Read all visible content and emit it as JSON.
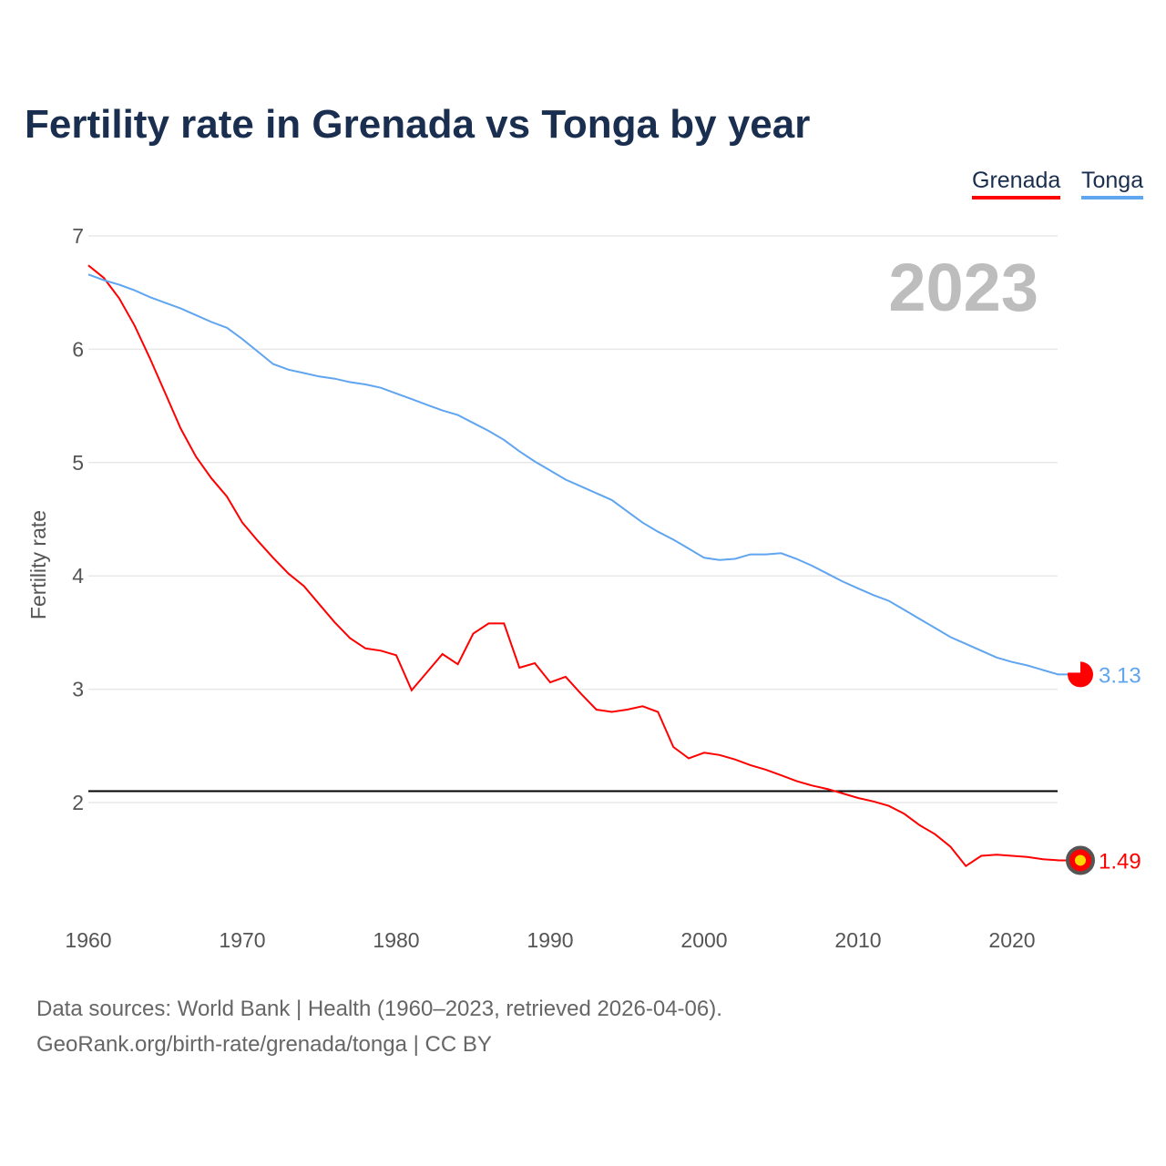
{
  "title": "Fertility rate in Grenada vs Tonga by year",
  "legend": [
    {
      "name": "Grenada",
      "color": "#ff0000"
    },
    {
      "name": "Tonga",
      "color": "#60a5ef"
    }
  ],
  "year_label": "2023",
  "source_line1": "Data sources: World Bank | Health (1960–2023, retrieved 2026-04-06).",
  "source_line2": "GeoRank.org/birth-rate/grenada/tonga | CC BY",
  "chart_data": {
    "type": "line",
    "title": "Fertility rate in Grenada vs Tonga by year",
    "xlabel": "",
    "ylabel": "Fertility rate",
    "xlim": [
      1960,
      2023
    ],
    "ylim": [
      1,
      7
    ],
    "xticks": [
      1960,
      1970,
      1980,
      1990,
      2000,
      2010,
      2020
    ],
    "yticks": [
      2,
      3,
      4,
      5,
      6,
      7
    ],
    "reference_line": 2.1,
    "x": [
      1960,
      1961,
      1962,
      1963,
      1964,
      1965,
      1966,
      1967,
      1968,
      1969,
      1970,
      1971,
      1972,
      1973,
      1974,
      1975,
      1976,
      1977,
      1978,
      1979,
      1980,
      1981,
      1982,
      1983,
      1984,
      1985,
      1986,
      1987,
      1988,
      1989,
      1990,
      1991,
      1992,
      1993,
      1994,
      1995,
      1996,
      1997,
      1998,
      1999,
      2000,
      2001,
      2002,
      2003,
      2004,
      2005,
      2006,
      2007,
      2008,
      2009,
      2010,
      2011,
      2012,
      2013,
      2014,
      2015,
      2016,
      2017,
      2018,
      2019,
      2020,
      2021,
      2022,
      2023
    ],
    "series": [
      {
        "name": "Grenada",
        "color": "#ff0000",
        "end_label": "1.49",
        "values": [
          6.74,
          6.63,
          6.45,
          6.21,
          5.92,
          5.61,
          5.3,
          5.05,
          4.86,
          4.7,
          4.47,
          4.31,
          4.16,
          4.02,
          3.91,
          3.75,
          3.59,
          3.45,
          3.36,
          3.34,
          3.3,
          2.99,
          3.15,
          3.31,
          3.22,
          3.49,
          3.58,
          3.58,
          3.19,
          3.23,
          3.06,
          3.11,
          2.96,
          2.82,
          2.8,
          2.82,
          2.85,
          2.8,
          2.49,
          2.39,
          2.44,
          2.42,
          2.38,
          2.33,
          2.29,
          2.24,
          2.19,
          2.15,
          2.12,
          2.08,
          2.04,
          2.01,
          1.97,
          1.9,
          1.8,
          1.72,
          1.61,
          1.44,
          1.53,
          1.54,
          1.53,
          1.52,
          1.5,
          1.49
        ]
      },
      {
        "name": "Tonga",
        "color": "#60a5ef",
        "end_label": "3.13",
        "values": [
          6.66,
          6.61,
          6.57,
          6.52,
          6.46,
          6.41,
          6.36,
          6.3,
          6.24,
          6.19,
          6.09,
          5.98,
          5.87,
          5.82,
          5.79,
          5.76,
          5.74,
          5.71,
          5.69,
          5.66,
          5.61,
          5.56,
          5.51,
          5.46,
          5.42,
          5.35,
          5.28,
          5.2,
          5.1,
          5.01,
          4.93,
          4.85,
          4.79,
          4.73,
          4.67,
          4.57,
          4.47,
          4.39,
          4.32,
          4.24,
          4.16,
          4.14,
          4.15,
          4.19,
          4.19,
          4.2,
          4.15,
          4.09,
          4.02,
          3.95,
          3.89,
          3.83,
          3.78,
          3.7,
          3.62,
          3.54,
          3.46,
          3.4,
          3.34,
          3.28,
          3.24,
          3.21,
          3.17,
          3.13
        ]
      }
    ]
  }
}
